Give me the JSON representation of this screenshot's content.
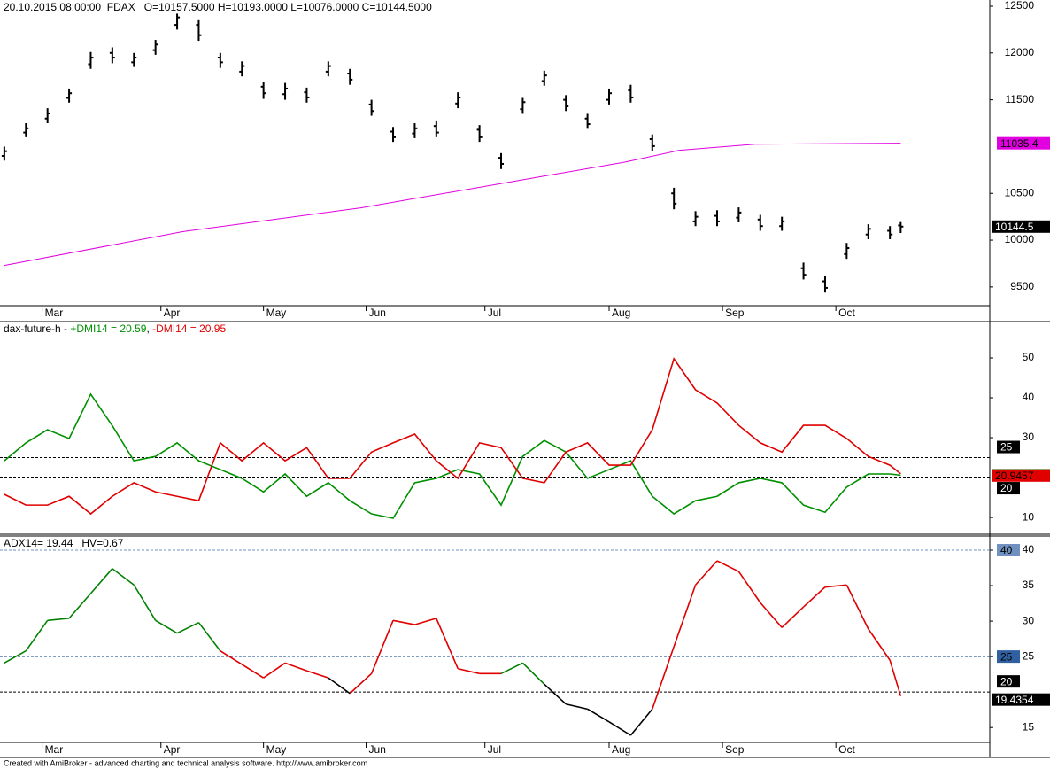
{
  "chart_data": [
    {
      "type": "ohlc",
      "title": "20.10.2015 08:00:00  FDAX   O=10157.5000 H=10193.0000 L=10076.0000 C=10144.5000",
      "x": [
        0,
        4,
        8,
        12,
        16,
        20,
        24,
        28,
        32,
        36,
        40,
        44,
        48,
        52,
        56,
        60,
        64,
        68,
        72,
        76,
        80,
        84,
        88,
        92,
        96,
        100,
        104,
        108,
        112,
        116,
        120,
        124,
        128,
        132,
        136,
        140,
        144,
        148,
        152,
        156,
        160,
        164,
        166
      ],
      "open": [
        10900,
        11150,
        11300,
        11520,
        11880,
        12000,
        11900,
        12030,
        12300,
        12300,
        11950,
        11800,
        11640,
        11560,
        11580,
        11800,
        11780,
        11450,
        11160,
        11140,
        11220,
        11460,
        11180,
        10880,
        11400,
        11700,
        11500,
        11300,
        11500,
        11600,
        11080,
        10500,
        10200,
        10260,
        10240,
        10220,
        10150,
        9700,
        9560,
        9850,
        10060,
        10100,
        10157.5
      ],
      "high": [
        11000,
        11250,
        11410,
        11620,
        12010,
        12060,
        12000,
        12140,
        12420,
        12350,
        12000,
        11910,
        11690,
        11680,
        11630,
        11910,
        11830,
        11500,
        11210,
        11250,
        11270,
        11580,
        11230,
        10930,
        11520,
        11810,
        11550,
        11350,
        11620,
        11660,
        11130,
        10560,
        10310,
        10320,
        10350,
        10270,
        10250,
        9760,
        9620,
        9970,
        10170,
        10150,
        10193
      ],
      "low": [
        10850,
        11100,
        11250,
        11470,
        11830,
        11890,
        11850,
        11980,
        12250,
        12130,
        11840,
        11750,
        11510,
        11500,
        11470,
        11750,
        11660,
        11330,
        11050,
        11090,
        11100,
        11410,
        11050,
        10760,
        11350,
        11650,
        11380,
        11190,
        11450,
        11470,
        10950,
        10330,
        10150,
        10150,
        10190,
        10100,
        10100,
        9580,
        9440,
        9800,
        10010,
        10010,
        10076
      ],
      "close": [
        10950,
        11195,
        11355,
        11570,
        11950,
        11950,
        11950,
        12090,
        12380,
        12190,
        11900,
        11860,
        11570,
        11620,
        11525,
        11860,
        11715,
        11380,
        11100,
        11195,
        11150,
        11525,
        11100,
        10815,
        11475,
        11760,
        11430,
        11240,
        11570,
        11525,
        11005,
        10390,
        10250,
        10200,
        10295,
        10150,
        10200,
        9630,
        9490,
        9915,
        10120,
        10060,
        10144.5
      ],
      "color": "#000000",
      "ma": {
        "x": [
          0,
          33,
          66,
          99,
          115,
          125,
          139,
          166
        ],
        "values": [
          9730,
          10090,
          10345,
          10675,
          10835,
          10960,
          11025,
          11035.4
        ],
        "color": "#e000e0"
      },
      "xlim": [
        -0.8,
        182.5
      ],
      "xticks": [
        {
          "value": 7,
          "label": "Mar"
        },
        {
          "value": 29,
          "label": "Apr"
        },
        {
          "value": 48,
          "label": "May"
        },
        {
          "value": 67,
          "label": "Jun"
        },
        {
          "value": 89,
          "label": "Jul"
        },
        {
          "value": 112,
          "label": "Aug"
        },
        {
          "value": 133,
          "label": "Sep"
        },
        {
          "value": 154,
          "label": "Oct"
        }
      ],
      "ylim": [
        9300,
        12566
      ],
      "yticks": [
        9500,
        10000,
        10500,
        11500,
        12000,
        12500
      ]
    },
    {
      "type": "line",
      "title_parts": [
        "dax-future-h - ",
        "+DMI14 = 20.59",
        ", ",
        "-DMI14 = 20.95"
      ],
      "x": [
        0,
        4,
        8,
        12,
        16,
        20,
        24,
        28,
        32,
        36,
        40,
        44,
        48,
        52,
        56,
        60,
        64,
        68,
        72,
        76,
        80,
        84,
        88,
        92,
        96,
        100,
        104,
        108,
        112,
        116,
        120,
        124,
        128,
        132,
        136,
        140,
        144,
        148,
        152,
        156,
        160,
        164,
        166
      ],
      "series": [
        {
          "color": "#009000",
          "values": [
            24.2,
            28.7,
            32,
            29.8,
            40.9,
            33,
            24.2,
            25.3,
            28.7,
            24.2,
            22,
            19.8,
            16.4,
            20.9,
            15.3,
            18.7,
            14.2,
            10.9,
            9.8,
            18.7,
            19.8,
            22,
            20.9,
            13.1,
            25.3,
            29.3,
            26.4,
            19.8,
            22,
            24.2,
            15.3,
            10.9,
            14.2,
            15.3,
            18.7,
            19.8,
            18.7,
            13.1,
            11.3,
            17.6,
            20.9,
            20.9,
            20.5867
          ]
        },
        {
          "color": "#e00000",
          "values": [
            15.8,
            13.1,
            13.1,
            15.3,
            10.9,
            15.3,
            18.7,
            16.4,
            15.3,
            14.2,
            28.7,
            24.2,
            28.7,
            24.2,
            27.5,
            19.8,
            19.8,
            26.4,
            28.7,
            30.9,
            24.2,
            19.8,
            28.7,
            27.5,
            19.8,
            18.7,
            26.4,
            28.7,
            23.1,
            23.1,
            32,
            49.8,
            42,
            38.7,
            33.1,
            28.7,
            26.4,
            33.1,
            33.1,
            29.8,
            25.3,
            23.1,
            20.9457
          ]
        }
      ],
      "levels": [
        {
          "value": 25,
          "color": "#000000",
          "width": 1
        },
        {
          "value": 20,
          "color": "#000000",
          "width": 2
        }
      ],
      "xlim": [
        -0.8,
        182.5
      ],
      "ylim": [
        5.8,
        59.1
      ],
      "yticks": [
        10,
        30,
        40,
        50
      ]
    },
    {
      "type": "line",
      "title": "ADX14= 19.44   HV=0.67",
      "x": [
        0,
        4,
        8,
        12,
        16,
        20,
        24,
        28,
        32,
        36,
        40,
        44,
        48,
        52,
        56,
        60,
        64,
        68,
        72,
        76,
        80,
        84,
        88,
        92,
        96,
        100,
        104,
        108,
        112,
        116,
        120,
        124,
        128,
        132,
        136,
        140,
        144,
        148,
        152,
        156,
        160,
        164,
        166
      ],
      "series": [
        {
          "color": "#e00000",
          "values": [
            24.1,
            25.8,
            30.1,
            30.4,
            33.9,
            37.4,
            35.1,
            30.1,
            28.3,
            29.8,
            25.8,
            23.9,
            22,
            24.1,
            23,
            22,
            19.8,
            22.6,
            30.1,
            29.5,
            30.4,
            23.3,
            22.6,
            22.6,
            24.1,
            21.1,
            18.3,
            17.6,
            15.8,
            13.9,
            17.6,
            26.4,
            35.1,
            38.5,
            37,
            32.6,
            29.1,
            32,
            34.8,
            35.1,
            28.9,
            24.5,
            19.4354
          ],
          "colors": [
            "#008000",
            "#008000",
            "#008000",
            "#008000",
            "#008000",
            "#008000",
            "#008000",
            "#008000",
            "#008000",
            "#008000",
            "#008000",
            "#e00000",
            "#e00000",
            "#e00000",
            "#e00000",
            "#e00000",
            "#000000",
            "#e00000",
            "#e00000",
            "#e00000",
            "#e00000",
            "#e00000",
            "#e00000",
            "#e00000",
            "#008000",
            "#008000",
            "#000000",
            "#000000",
            "#000000",
            "#000000",
            "#000000",
            "#e00000",
            "#e00000",
            "#e00000",
            "#e00000",
            "#e00000",
            "#e00000",
            "#e00000",
            "#e00000",
            "#e00000",
            "#e00000",
            "#e00000",
            "#e00000"
          ]
        }
      ],
      "levels": [
        {
          "value": 40,
          "color": "#7090c0",
          "width": 1
        },
        {
          "value": 25,
          "color": "#3060a0",
          "width": 1
        },
        {
          "value": 20,
          "color": "#000000",
          "width": 1
        }
      ],
      "xlim": [
        -0.8,
        182.5
      ],
      "xticks": [
        {
          "value": 7,
          "label": "Mar"
        },
        {
          "value": 29,
          "label": "Apr"
        },
        {
          "value": 48,
          "label": "May"
        },
        {
          "value": 67,
          "label": "Jun"
        },
        {
          "value": 89,
          "label": "Jul"
        },
        {
          "value": 112,
          "label": "Aug"
        },
        {
          "value": 133,
          "label": "Sep"
        },
        {
          "value": 154,
          "label": "Oct"
        }
      ],
      "ylim": [
        12.9,
        42
      ],
      "yticks": [
        15,
        25,
        30,
        35,
        40
      ]
    }
  ],
  "footer": "Created with AmiBroker - advanced charting and technical analysis software. http://www.amibroker.com"
}
